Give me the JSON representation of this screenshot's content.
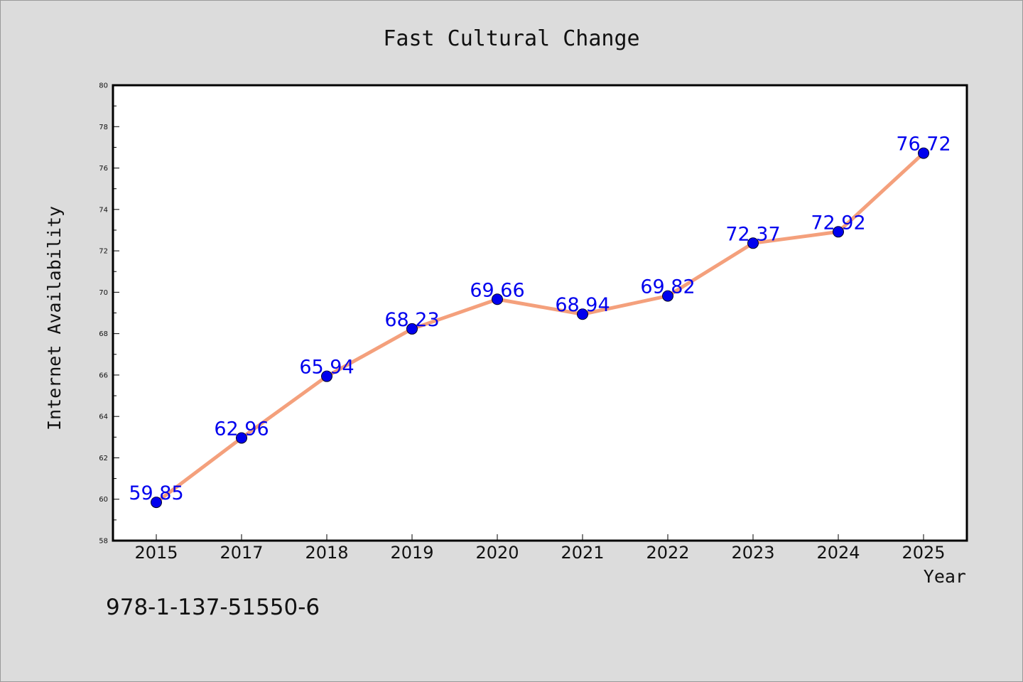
{
  "chart_data": {
    "type": "line",
    "title": "Fast Cultural Change",
    "xlabel": "Year",
    "ylabel": "Internet Availability",
    "categories": [
      "2015",
      "2017",
      "2018",
      "2019",
      "2020",
      "2021",
      "2022",
      "2023",
      "2024",
      "2025"
    ],
    "series": [
      {
        "values": [
          59.85,
          62.96,
          65.94,
          68.23,
          69.66,
          68.94,
          69.82,
          72.37,
          72.92,
          76.72
        ],
        "labels": [
          "59.85",
          "62.96",
          "65.94",
          "68.23",
          "69.66",
          "68.94",
          "69.82",
          "72.37",
          "72.92",
          "76.72"
        ]
      }
    ],
    "ylim": [
      58,
      80
    ],
    "yticks": [
      "58",
      "60",
      "62",
      "64",
      "66",
      "68",
      "70",
      "72",
      "74",
      "76",
      "78",
      "80"
    ],
    "grid": false,
    "line_color": "#f4a07c",
    "marker_color": "#0000ee",
    "label_color": "#0000ee"
  },
  "footer": {
    "isbn": "978-1-137-51550-6"
  }
}
